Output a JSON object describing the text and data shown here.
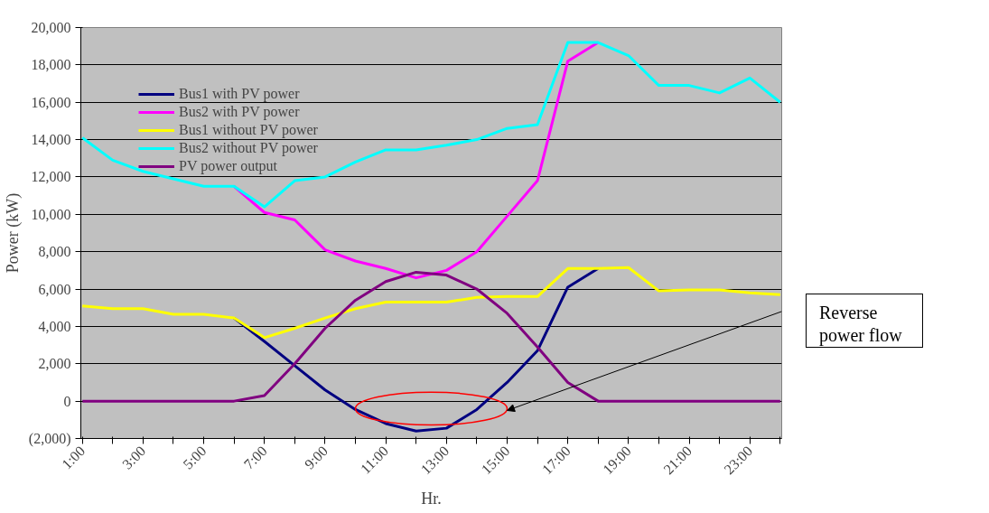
{
  "chart_data": {
    "type": "line",
    "xlabel": "Hr.",
    "ylabel": "Power (kW)",
    "categories": [
      "1:00",
      null,
      "3:00",
      null,
      "5:00",
      null,
      "7:00",
      null,
      "9:00",
      null,
      "11:00",
      null,
      "13:00",
      null,
      "15:00",
      null,
      "17:00",
      null,
      "19:00",
      null,
      "21:00",
      null,
      "23:00",
      null
    ],
    "series": [
      {
        "name": "Bus1 with PV power",
        "color": "#000080",
        "values": [
          null,
          null,
          null,
          null,
          null,
          4450,
          3200,
          1900,
          600,
          -450,
          -1200,
          -1600,
          -1450,
          -450,
          1000,
          2700,
          6100,
          7100,
          null,
          null,
          null,
          null,
          null,
          null
        ]
      },
      {
        "name": "Bus2 with PV power",
        "color": "#ff00ff",
        "values": [
          null,
          null,
          null,
          null,
          null,
          11500,
          10100,
          9700,
          8100,
          7500,
          7100,
          6600,
          7000,
          8000,
          9900,
          11800,
          18200,
          19200,
          null,
          null,
          null,
          null,
          null,
          null
        ]
      },
      {
        "name": "Bus1 without PV power",
        "color": "#ffff00",
        "values": [
          5100,
          4950,
          4950,
          4650,
          4650,
          4450,
          3400,
          3900,
          4450,
          4950,
          5300,
          5300,
          5300,
          5550,
          5600,
          5600,
          7100,
          7100,
          7150,
          5900,
          5950,
          5950,
          5800,
          5700
        ]
      },
      {
        "name": "Bus2 without PV power",
        "color": "#00ffff",
        "values": [
          14100,
          12900,
          12300,
          11900,
          11500,
          11500,
          10400,
          11800,
          12000,
          12800,
          13450,
          13450,
          13700,
          14000,
          14600,
          14800,
          19200,
          19200,
          18500,
          16900,
          16900,
          16500,
          17300,
          16000
        ]
      },
      {
        "name": "PV power output",
        "color": "#800080",
        "values": [
          0,
          0,
          0,
          0,
          0,
          0,
          300,
          2000,
          3900,
          5400,
          6400,
          6900,
          6750,
          6000,
          4700,
          2900,
          1000,
          0,
          0,
          0,
          0,
          0,
          0,
          0
        ]
      }
    ],
    "ylim": [
      -2000,
      20000
    ],
    "yticks": [
      {
        "value": -2000,
        "label": "(2,000)"
      },
      0,
      {
        "value": 2000,
        "label": "2,000"
      },
      {
        "value": 4000,
        "label": "4,000"
      },
      {
        "value": 6000,
        "label": "6,000"
      },
      {
        "value": 8000,
        "label": "8,000"
      },
      {
        "value": 10000,
        "label": "10,000"
      },
      {
        "value": 12000,
        "label": "12,000"
      },
      {
        "value": 14000,
        "label": "14,000"
      },
      {
        "value": 16000,
        "label": "16,000"
      },
      {
        "value": 18000,
        "label": "18,000"
      },
      {
        "value": 20000,
        "label": "20,000"
      }
    ],
    "grid": "y",
    "legend": "top left",
    "marker": "none",
    "line_style": "solid",
    "annotations": [
      "Reverse power flow"
    ]
  }
}
